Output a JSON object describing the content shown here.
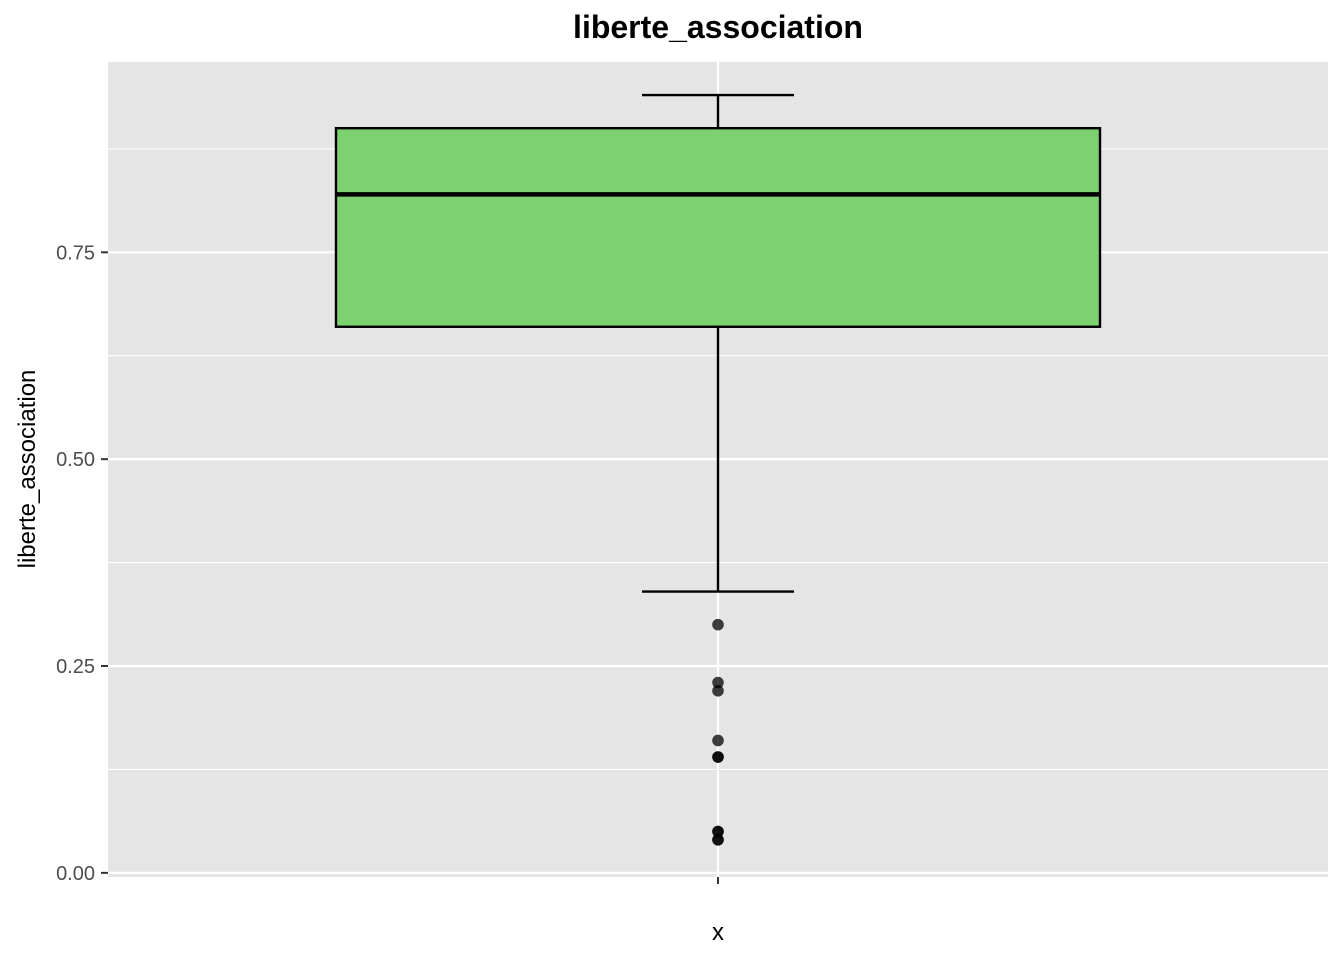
{
  "chart_data": {
    "type": "boxplot",
    "title": "liberte_association",
    "xlabel": "x",
    "ylabel": "liberte_association",
    "categories": [
      ""
    ],
    "ylim": [
      -0.005,
      0.98
    ],
    "y_ticks": [
      0.0,
      0.25,
      0.5,
      0.75
    ],
    "y_tick_labels": [
      "0.00",
      "0.25",
      "0.50",
      "0.75"
    ],
    "grid": true,
    "legend": "none",
    "box": {
      "q1": 0.66,
      "median": 0.82,
      "q3": 0.9,
      "whisker_low": 0.34,
      "whisker_high": 0.94,
      "outliers": [
        0.3,
        0.23,
        0.22,
        0.16,
        0.14,
        0.14,
        0.05,
        0.05,
        0.04,
        0.04
      ]
    },
    "colors": {
      "box_fill": "#78d06a",
      "panel_bg": "#e5e5e5",
      "grid": "#ffffff",
      "outline": "#000000"
    }
  }
}
